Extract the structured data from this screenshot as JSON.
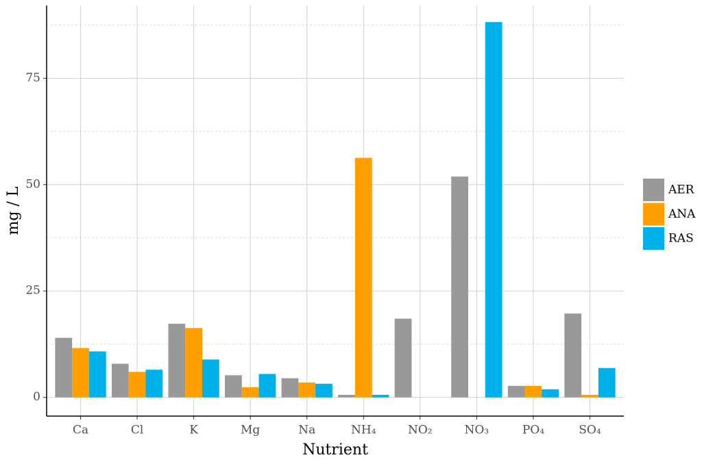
{
  "chart_data": {
    "type": "bar",
    "x_label": "Nutrient",
    "y_label": "mg / L",
    "categories": [
      "Ca",
      "Cl",
      "K",
      "Mg",
      "Na",
      "NH₄",
      "NO₂",
      "NO₃",
      "PO₄",
      "SO₄"
    ],
    "series": [
      {
        "name": "AER",
        "color": "#999999",
        "values": [
          14.0,
          7.9,
          17.3,
          5.2,
          4.5,
          0.6,
          18.5,
          51.9,
          2.7,
          19.7
        ]
      },
      {
        "name": "ANA",
        "color": "#ff9f00",
        "values": [
          11.6,
          6.0,
          16.3,
          2.4,
          3.5,
          56.3,
          0,
          0,
          2.7,
          0.6
        ]
      },
      {
        "name": "RAS",
        "color": "#00b0e8",
        "values": [
          10.8,
          6.5,
          8.9,
          5.5,
          3.2,
          0.6,
          0,
          88.2,
          1.9,
          6.9
        ]
      }
    ],
    "ylim": [
      -4.4,
      92.1
    ],
    "yticks": [
      0,
      25,
      50,
      75
    ],
    "grid": true,
    "minor_grid": true,
    "legend": "right"
  }
}
